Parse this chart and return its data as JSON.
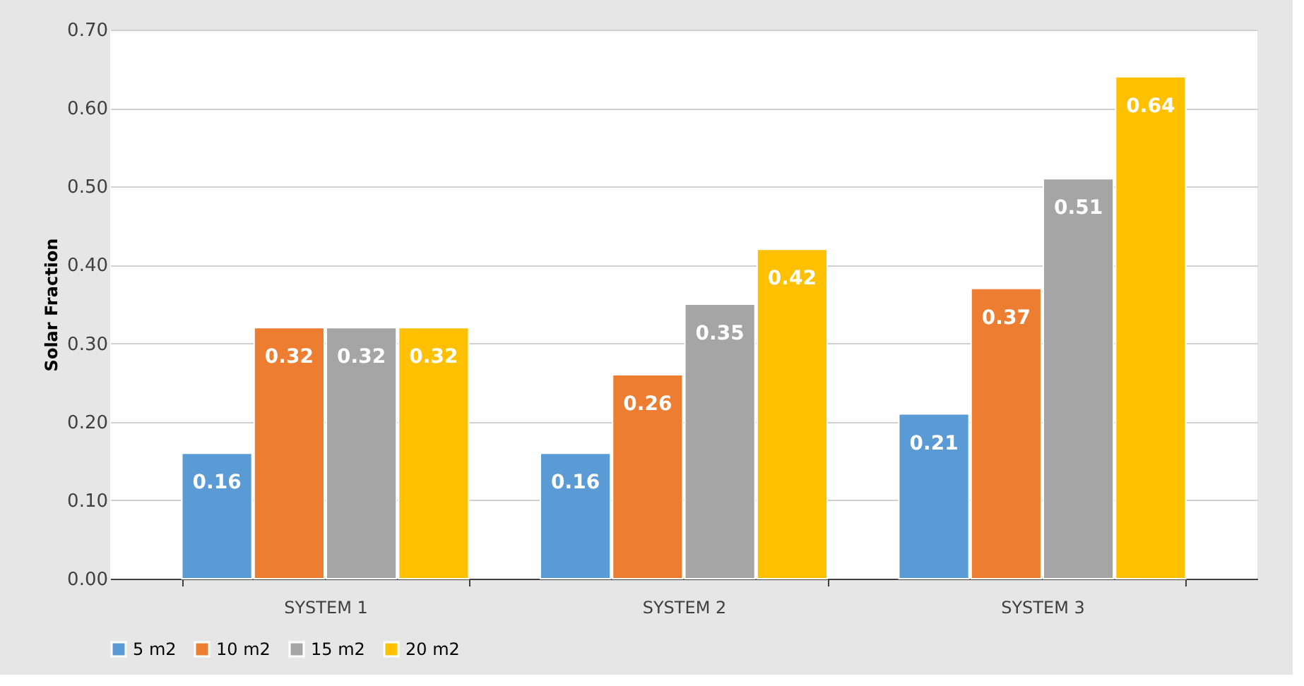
{
  "chart_data": {
    "type": "bar",
    "ylabel": "Solar Fraction",
    "categories": [
      "SYSTEM 1",
      "SYSTEM 2",
      "SYSTEM 3"
    ],
    "series": [
      {
        "name": "5 m2",
        "color": "#5b9bd5",
        "values": [
          0.16,
          0.16,
          0.21
        ]
      },
      {
        "name": "10 m2",
        "color": "#ed7d31",
        "values": [
          0.32,
          0.26,
          0.37
        ]
      },
      {
        "name": "15 m2",
        "color": "#a5a5a5",
        "values": [
          0.32,
          0.35,
          0.51
        ]
      },
      {
        "name": "20 m2",
        "color": "#ffc000",
        "values": [
          0.32,
          0.42,
          0.64
        ]
      }
    ],
    "ylim": [
      0,
      0.7
    ],
    "yticks": [
      {
        "value": 0,
        "label": "0.00"
      },
      {
        "value": 0.1,
        "label": "0.10"
      },
      {
        "value": 0.2,
        "label": "0.20"
      },
      {
        "value": 0.3,
        "label": "0.30"
      },
      {
        "value": 0.4,
        "label": "0.40"
      },
      {
        "value": 0.5,
        "label": "0.50"
      },
      {
        "value": 0.6,
        "label": "0.60"
      },
      {
        "value": 0.7,
        "label": "0.70"
      }
    ],
    "grid": "y",
    "legend": "bottom",
    "data_labels": true
  }
}
